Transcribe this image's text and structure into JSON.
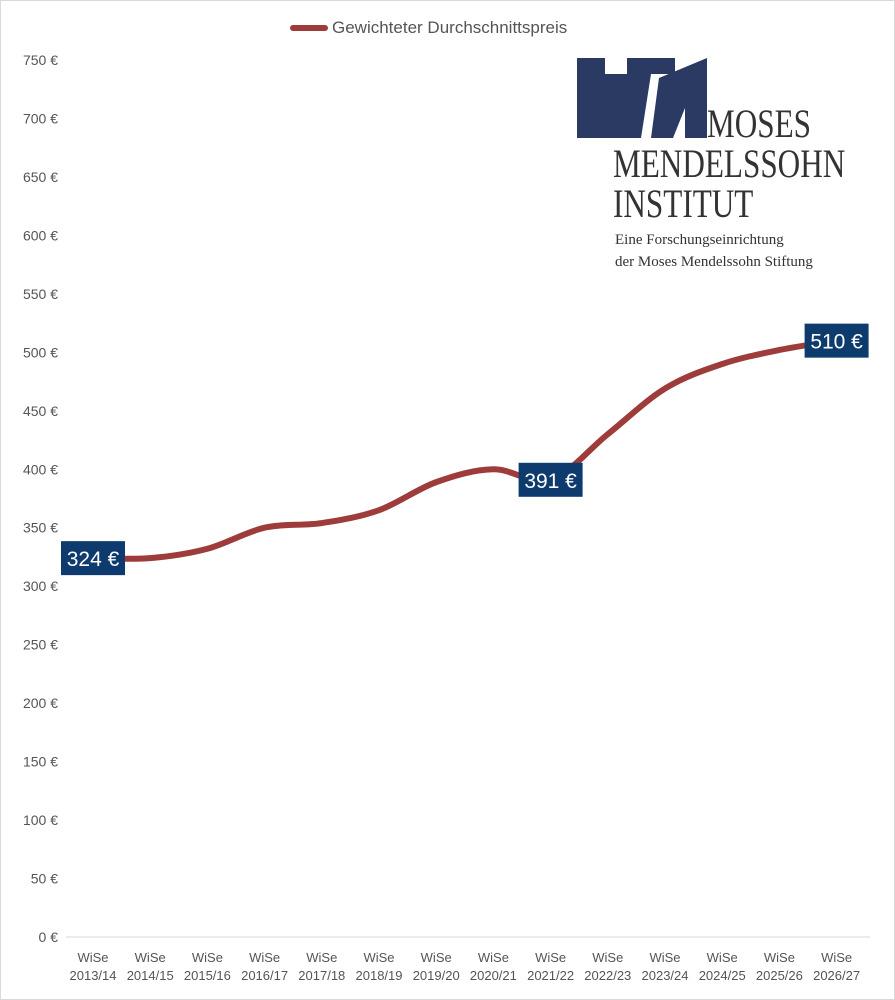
{
  "colors": {
    "series": "#9e3b3b",
    "label_box": "#0d3b6e",
    "grid": "#d9d9d9",
    "text": "#555555",
    "logo_blue": "#2b3a63"
  },
  "logo": {
    "icon": "mmi-logo-mark",
    "name_line1": "MOSES",
    "name_line2": "MENDELSSOHN",
    "name_line3": "INSTITUT",
    "tagline1": "Eine Forschungseinrichtung",
    "tagline2": "der Moses Mendelssohn Stiftung"
  },
  "chart_data": {
    "type": "line",
    "title": "",
    "xlabel": "",
    "ylabel": "",
    "ylim": [
      0,
      750
    ],
    "y_ticks": [
      0,
      50,
      100,
      150,
      200,
      250,
      300,
      350,
      400,
      450,
      500,
      550,
      600,
      650,
      700,
      750
    ],
    "y_tick_labels": [
      "0 €",
      "50 €",
      "100 €",
      "150 €",
      "200 €",
      "250 €",
      "300 €",
      "350 €",
      "400 €",
      "450 €",
      "500 €",
      "550 €",
      "600 €",
      "650 €",
      "700 €",
      "750 €"
    ],
    "categories": [
      [
        "WiSe",
        "2013/14"
      ],
      [
        "WiSe",
        "2014/15"
      ],
      [
        "WiSe",
        "2015/16"
      ],
      [
        "WiSe",
        "2016/17"
      ],
      [
        "WiSe",
        "2017/18"
      ],
      [
        "WiSe",
        "2018/19"
      ],
      [
        "WiSe",
        "2019/20"
      ],
      [
        "WiSe",
        "2020/21"
      ],
      [
        "WiSe",
        "2021/22"
      ],
      [
        "WiSe",
        "2022/23"
      ],
      [
        "WiSe",
        "2023/24"
      ],
      [
        "WiSe",
        "2024/25"
      ],
      [
        "WiSe",
        "2025/26"
      ],
      [
        "WiSe",
        "2026/27"
      ]
    ],
    "legend_position": "top",
    "grid": false,
    "series": [
      {
        "name": "Gewichteter Durchschnittspreis",
        "values": [
          324,
          324,
          332,
          350,
          354,
          365,
          389,
          400,
          391,
          430,
          469,
          490,
          502,
          510
        ]
      }
    ],
    "data_labels": [
      {
        "index": 0,
        "text": "324 €"
      },
      {
        "index": 8,
        "text": "391 €"
      },
      {
        "index": 13,
        "text": "510 €"
      }
    ]
  }
}
